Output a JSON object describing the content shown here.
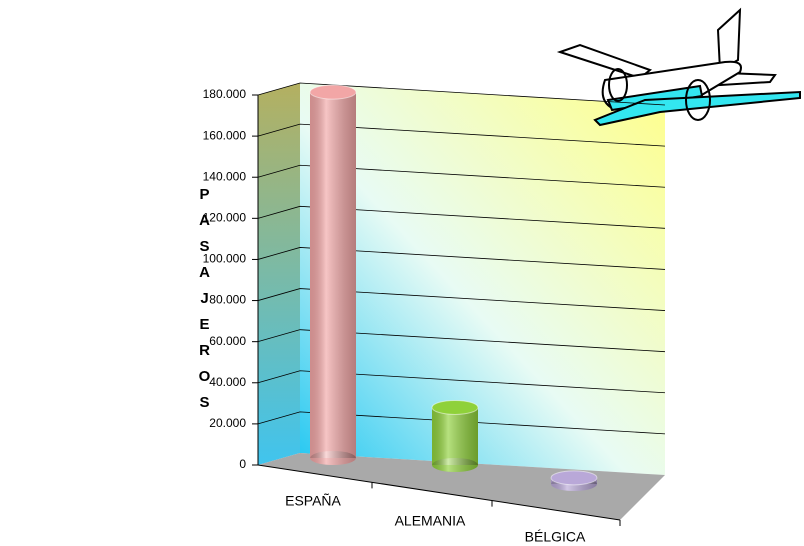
{
  "chart_data": {
    "type": "bar3d",
    "y_label": "PASAJEROS",
    "categories": [
      "ESPAÑA",
      "ALEMANIA",
      "BÉLGICA"
    ],
    "values": [
      178000,
      28000,
      3000
    ],
    "colors": [
      "#f2a6a6",
      "#8fd13a",
      "#b9a8d8"
    ],
    "ylim": [
      0,
      180000
    ],
    "yticks": [
      0,
      {
        "value": 20000,
        "label": "20.000"
      },
      {
        "value": 40000,
        "label": "40.000"
      },
      {
        "value": 60000,
        "label": "60.000"
      },
      {
        "value": 80000,
        "label": "80.000"
      },
      {
        "value": 100000,
        "label": "100.000"
      },
      {
        "value": 120000,
        "label": "120.000"
      },
      {
        "value": 140000,
        "label": "140.000"
      },
      {
        "value": 160000,
        "label": "160.000"
      },
      {
        "value": 180000,
        "label": "180.000"
      }
    ],
    "grid": true
  }
}
